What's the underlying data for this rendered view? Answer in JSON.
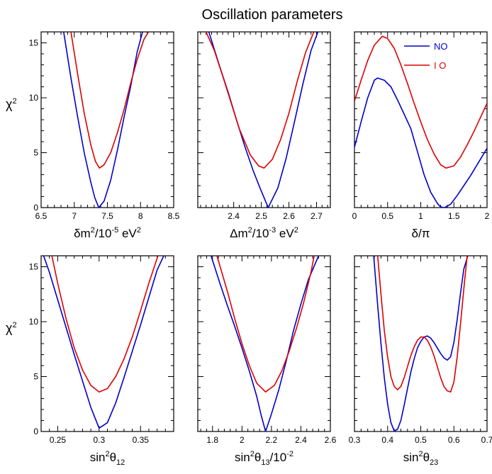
{
  "title": "Oscillation parameters",
  "y_axis": {
    "label_base": "χ",
    "label_sup": "2",
    "ylim": [
      0,
      16
    ],
    "ticks": [
      "0",
      "5",
      "10",
      "15"
    ]
  },
  "legend": [
    {
      "name": "NO",
      "color": "#0000cc"
    },
    {
      "name": "I O",
      "color": "#dd0000"
    }
  ],
  "chart_data": [
    {
      "type": "line",
      "xlabel": {
        "base": "δm",
        "sup1": "2",
        "mid": "/10",
        "sup2": "-5",
        "tail": " eV",
        "sup3": "2"
      },
      "xlim": [
        6.5,
        8.5
      ],
      "ticks": [
        "6.5",
        "7",
        "7.5",
        "8",
        "8.5"
      ],
      "ylim": [
        0,
        16
      ],
      "series": [
        {
          "x": [
            6.84,
            6.95,
            7.05,
            7.15,
            7.25,
            7.31,
            7.37,
            7.45,
            7.55,
            7.65,
            7.75,
            7.85,
            7.95,
            8.03
          ],
          "y": [
            16,
            11.8,
            8.3,
            5,
            2.3,
            0.9,
            0,
            0.6,
            2.5,
            5.2,
            8.2,
            11,
            14.2,
            16
          ]
        },
        {
          "x": [
            6.95,
            7.05,
            7.15,
            7.25,
            7.32,
            7.38,
            7.45,
            7.55,
            7.65,
            7.75,
            7.85,
            7.95,
            8.05,
            8.12
          ],
          "y": [
            16,
            12.2,
            8.6,
            5.7,
            4.2,
            3.6,
            3.9,
            5,
            6.8,
            8.9,
            11.3,
            13.5,
            15.3,
            16
          ]
        }
      ]
    },
    {
      "type": "line",
      "xlabel": {
        "base": "Δm",
        "sup1": "2",
        "mid": "/10",
        "sup2": "-3",
        "tail": " eV",
        "sup3": "2"
      },
      "xlim": [
        2.27,
        2.75
      ],
      "ticks": [
        "2.4",
        "2.5",
        "2.6",
        "2.7"
      ],
      "ylim": [
        0,
        16
      ],
      "series": [
        {
          "x": [
            2.31,
            2.35,
            2.38,
            2.41,
            2.44,
            2.47,
            2.495,
            2.525,
            2.56,
            2.59,
            2.62,
            2.65,
            2.68,
            2.705
          ],
          "y": [
            16,
            12.8,
            10.5,
            8,
            5.6,
            3.4,
            1.8,
            0,
            1.8,
            4.5,
            7.8,
            11.2,
            14.3,
            16
          ]
        },
        {
          "x": [
            2.3,
            2.33,
            2.36,
            2.39,
            2.42,
            2.46,
            2.49,
            2.51,
            2.54,
            2.57,
            2.6,
            2.63,
            2.66,
            2.69
          ],
          "y": [
            16,
            14.3,
            12,
            9.6,
            7.2,
            4.8,
            3.8,
            3.6,
            4.4,
            6.2,
            8.6,
            11.5,
            14.1,
            16
          ]
        }
      ]
    },
    {
      "type": "line",
      "xlabel": {
        "base": "δ/π",
        "sup1": "",
        "mid": "",
        "sup2": "",
        "tail": "",
        "sup3": ""
      },
      "xlim": [
        0,
        2
      ],
      "ticks": [
        "0",
        "0.5",
        "1",
        "1.5",
        "2"
      ],
      "ylim": [
        0,
        16
      ],
      "series": [
        {
          "x": [
            0,
            0.1,
            0.2,
            0.3,
            0.35,
            0.45,
            0.55,
            0.65,
            0.75,
            0.85,
            0.95,
            1.05,
            1.15,
            1.25,
            1.3,
            1.36,
            1.45,
            1.55,
            1.65,
            1.75,
            1.85,
            2
          ],
          "y": [
            5.5,
            7.8,
            10,
            11.6,
            11.8,
            11.6,
            11,
            9.8,
            8.5,
            7.2,
            5.1,
            3,
            1.4,
            0.4,
            0.05,
            0,
            0.3,
            1.1,
            2,
            2.9,
            3.9,
            5.4
          ]
        },
        {
          "x": [
            0,
            0.1,
            0.2,
            0.3,
            0.42,
            0.5,
            0.6,
            0.7,
            0.8,
            0.9,
            1,
            1.1,
            1.2,
            1.3,
            1.38,
            1.5,
            1.6,
            1.7,
            1.8,
            1.9,
            2
          ],
          "y": [
            9.7,
            11.6,
            13.4,
            14.8,
            15.6,
            15.4,
            14.5,
            13,
            11.3,
            9.5,
            7.8,
            6.2,
            4.9,
            3.9,
            3.6,
            3.8,
            4.6,
            5.7,
            6.9,
            8.2,
            9.5
          ]
        }
      ]
    },
    {
      "type": "line",
      "xlabel": {
        "base": "sin",
        "sup1": "2",
        "mid": "θ",
        "sub": "12",
        "sup2": "",
        "tail": "",
        "sup3": ""
      },
      "xlim": [
        0.23,
        0.39
      ],
      "ticks": [
        "0.25",
        "0.3",
        "0.35"
      ],
      "ylim": [
        0,
        16
      ],
      "series": [
        {
          "x": [
            0.233,
            0.24,
            0.25,
            0.26,
            0.27,
            0.28,
            0.29,
            0.3,
            0.31,
            0.32,
            0.33,
            0.34,
            0.35,
            0.36,
            0.37,
            0.378
          ],
          "y": [
            16,
            14.5,
            12,
            9.5,
            7,
            4.6,
            2.2,
            0.3,
            0.8,
            2.6,
            4.9,
            7.3,
            9.7,
            12.2,
            14.7,
            16
          ]
        },
        {
          "x": [
            0.243,
            0.25,
            0.26,
            0.27,
            0.28,
            0.29,
            0.3,
            0.31,
            0.32,
            0.33,
            0.34,
            0.35,
            0.36,
            0.371
          ],
          "y": [
            16,
            13.5,
            10.3,
            7.6,
            5.6,
            4.2,
            3.6,
            3.9,
            5,
            6.6,
            8.6,
            11,
            13.5,
            16
          ]
        }
      ]
    },
    {
      "type": "line",
      "xlabel": {
        "base": "sin",
        "sup1": "2",
        "mid": "θ",
        "sub": "13",
        "tail": "/10",
        "sup3": "-2"
      },
      "xlim": [
        1.7,
        2.6
      ],
      "ticks": [
        "1.8",
        "2",
        "2.2",
        "2.4",
        "2.6"
      ],
      "ylim": [
        0,
        16
      ],
      "series": [
        {
          "x": [
            1.79,
            1.85,
            1.9,
            1.95,
            2,
            2.05,
            2.1,
            2.13,
            2.16,
            2.2,
            2.25,
            2.3,
            2.35,
            2.4,
            2.45,
            2.52
          ],
          "y": [
            16,
            13.5,
            11.5,
            9.6,
            7.6,
            5.5,
            3.2,
            1.5,
            0,
            1.6,
            3.8,
            6.4,
            9.2,
            11.6,
            13.8,
            16
          ]
        },
        {
          "x": [
            1.83,
            1.9,
            1.95,
            2,
            2.05,
            2.1,
            2.16,
            2.22,
            2.27,
            2.32,
            2.37,
            2.42,
            2.47,
            2.49
          ],
          "y": [
            16,
            12.8,
            10.3,
            8,
            6,
            4.4,
            3.6,
            4.2,
            5.5,
            7.3,
            9.4,
            11.8,
            14.6,
            16
          ]
        }
      ]
    },
    {
      "type": "line",
      "xlabel": {
        "base": "sin",
        "sup1": "2",
        "mid": "θ",
        "sub": "23",
        "sup2": "",
        "tail": "",
        "sup3": ""
      },
      "xlim": [
        0.3,
        0.7
      ],
      "ticks": [
        "0.3",
        "0.4",
        "0.5",
        "0.6",
        "0.7"
      ],
      "ylim": [
        0,
        16
      ],
      "series": [
        {
          "x": [
            0.358,
            0.37,
            0.38,
            0.39,
            0.4,
            0.41,
            0.42,
            0.43,
            0.44,
            0.45,
            0.46,
            0.47,
            0.48,
            0.49,
            0.5,
            0.51,
            0.52,
            0.53,
            0.54,
            0.55,
            0.56,
            0.57,
            0.58,
            0.59,
            0.6,
            0.61,
            0.62,
            0.63,
            0.642
          ],
          "y": [
            16,
            11.5,
            8,
            4.9,
            2.5,
            0.8,
            0.05,
            0.2,
            1,
            2.4,
            3.9,
            5.4,
            6.6,
            7.6,
            8.2,
            8.6,
            8.7,
            8.5,
            8.1,
            7.6,
            7.1,
            6.7,
            6.5,
            6.8,
            8.1,
            10.2,
            12.6,
            14.8,
            16
          ]
        },
        {
          "x": [
            0.37,
            0.38,
            0.39,
            0.4,
            0.41,
            0.42,
            0.43,
            0.44,
            0.45,
            0.46,
            0.47,
            0.48,
            0.49,
            0.5,
            0.51,
            0.52,
            0.53,
            0.54,
            0.55,
            0.56,
            0.57,
            0.58,
            0.59,
            0.6,
            0.61,
            0.62,
            0.63,
            0.64
          ],
          "y": [
            16,
            12.5,
            9.2,
            6.8,
            5,
            4.1,
            3.8,
            4.1,
            4.9,
            5.9,
            6.9,
            7.7,
            8.3,
            8.6,
            8.6,
            8.3,
            7.7,
            6.9,
            5.9,
            4.9,
            4.1,
            3.7,
            3.6,
            4.5,
            6.8,
            9.8,
            13,
            16
          ]
        }
      ]
    }
  ]
}
